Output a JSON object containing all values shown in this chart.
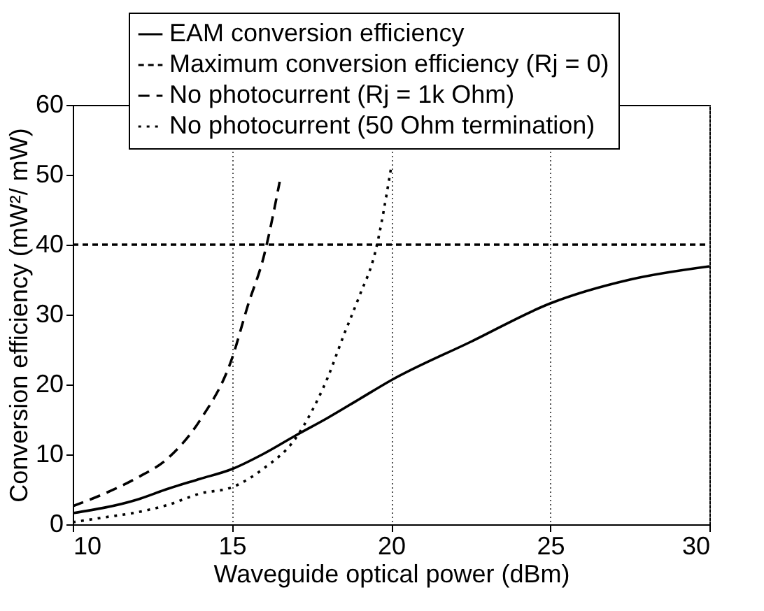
{
  "chart_data": {
    "type": "line",
    "xlabel": "Waveguide optical power (dBm)",
    "ylabel": "Conversion efficiency (mW²/ mW)",
    "xlim": [
      10,
      30
    ],
    "ylim": [
      0,
      60
    ],
    "xticks": [
      10,
      15,
      20,
      25,
      30
    ],
    "yticks": [
      0,
      10,
      20,
      30,
      40,
      50,
      60
    ],
    "grid": "x",
    "legend": "top right",
    "marker": "none",
    "series": [
      {
        "name": "EAM conversion efficiency",
        "color": "#000000",
        "line_style": "solid",
        "x": [
          10,
          12,
          13,
          14,
          15,
          16,
          17,
          18,
          19,
          20,
          22.5,
          25,
          27.5,
          30
        ],
        "values": [
          1.6,
          3.5,
          5.1,
          6.5,
          7.9,
          10.1,
          12.7,
          15.2,
          17.9,
          20.6,
          26.1,
          31.6,
          35.0,
          36.9
        ]
      },
      {
        "name": "Maximum conversion efficiency (Rj = 0)",
        "color": "#000000",
        "line_style": "dashed",
        "x": [
          10,
          30
        ],
        "values": [
          40,
          40
        ]
      },
      {
        "name": "No photocurrent (Rj = 1k Ohm)",
        "color": "#000000",
        "line_style": "dashed",
        "x": [
          10,
          11,
          12,
          13,
          14,
          15,
          15.5,
          16,
          16.5
        ],
        "values": [
          2.6,
          4.4,
          6.6,
          9.5,
          14.9,
          23.7,
          31.3,
          38.3,
          49
        ]
      },
      {
        "name": "No photocurrent (50 Ohm termination)",
        "color": "#000000",
        "line_style": "dotted",
        "x": [
          10,
          11,
          12,
          13,
          14,
          15,
          16,
          17,
          17.5,
          18,
          18.5,
          19,
          19.5,
          20
        ],
        "values": [
          0.3,
          1.0,
          1.7,
          2.8,
          4.4,
          5.3,
          8.0,
          12.3,
          16.1,
          20.9,
          26.9,
          32.6,
          38.9,
          51
        ]
      }
    ]
  }
}
